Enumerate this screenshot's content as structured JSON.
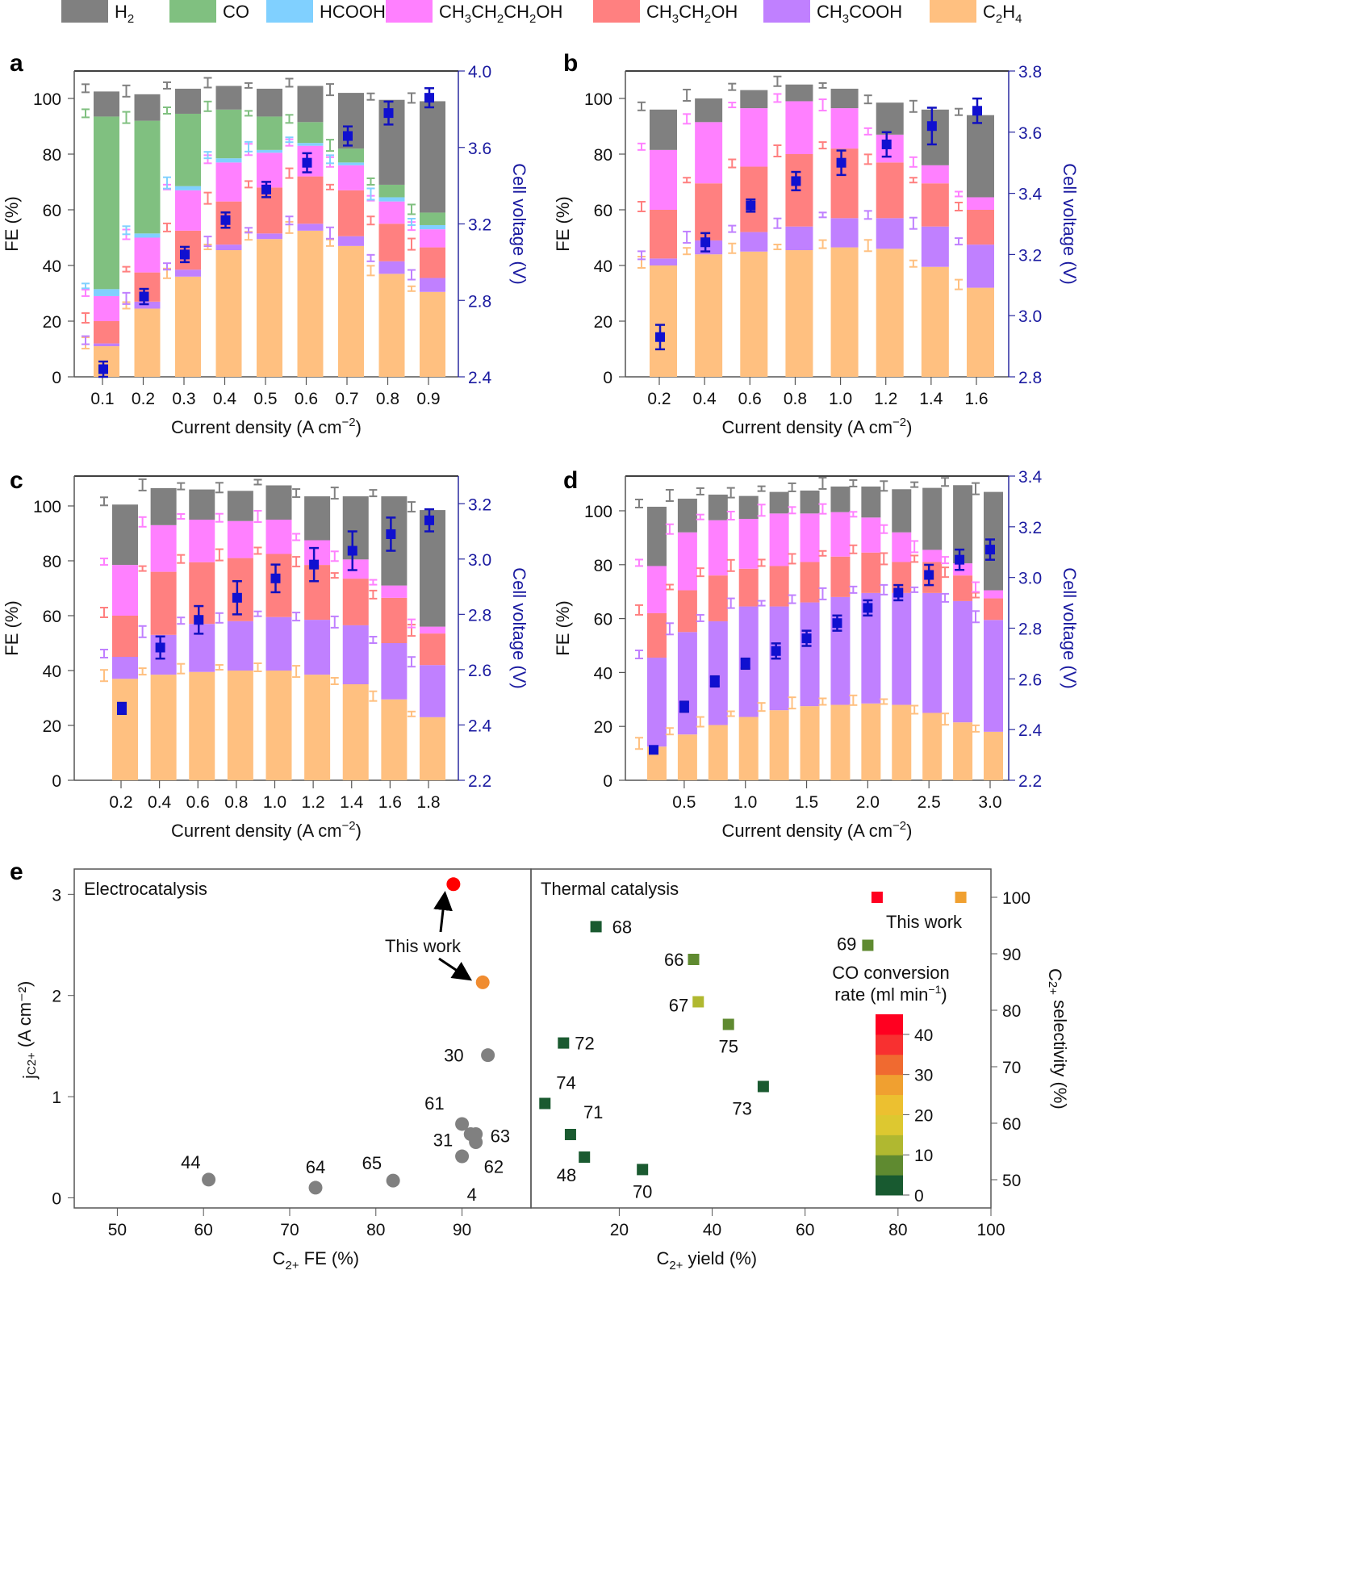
{
  "legend": [
    {
      "key": "H2",
      "label": "H",
      "sub": "2",
      "color": "#808080"
    },
    {
      "key": "CO",
      "label": "CO",
      "sub": "",
      "color": "#80c080"
    },
    {
      "key": "HCOOH",
      "label": "HCOOH",
      "sub": "",
      "color": "#80d0ff"
    },
    {
      "key": "PrOH",
      "label": "CH3CH2CH2OH",
      "sub": "",
      "color": "#ff80ff",
      "rich": [
        [
          "CH",
          "3"
        ],
        [
          "CH",
          "2"
        ],
        [
          "CH",
          "2"
        ],
        [
          "OH",
          ""
        ]
      ]
    },
    {
      "key": "EtOH",
      "label": "CH3CH2OH",
      "sub": "",
      "color": "#ff8080",
      "rich": [
        [
          "CH",
          "3"
        ],
        [
          "CH",
          "2"
        ],
        [
          "OH",
          ""
        ]
      ]
    },
    {
      "key": "AcOH",
      "label": "CH3COOH",
      "sub": "",
      "color": "#c080ff",
      "rich": [
        [
          "CH",
          "3"
        ],
        [
          "COOH",
          ""
        ]
      ]
    },
    {
      "key": "C2H4",
      "label": "C2H4",
      "sub": "",
      "color": "#ffc080",
      "rich": [
        [
          "C",
          "2"
        ],
        [
          "H",
          "4"
        ]
      ]
    }
  ],
  "chart_data": [
    {
      "panel": "a",
      "type": "bar",
      "stacked": true,
      "xlabel": "Current density (A cm⁻²)",
      "ylabel": "FE (%)",
      "y2label": "Cell voltage (V)",
      "categories": [
        "0.1",
        "0.2",
        "0.3",
        "0.4",
        "0.5",
        "0.6",
        "0.7",
        "0.8",
        "0.9"
      ],
      "ylim": [
        0,
        110
      ],
      "yticks": [
        0,
        20,
        40,
        60,
        80,
        100
      ],
      "y2lim": [
        2.4,
        4.0
      ],
      "y2ticks": [
        "2.4",
        "2.8",
        "3.2",
        "3.6",
        "4.0"
      ],
      "series": [
        {
          "name": "C2H4",
          "values": [
            11,
            24.5,
            36,
            45.5,
            49.5,
            52.5,
            47,
            37,
            30.5
          ]
        },
        {
          "name": "CH3COOH",
          "values": [
            1,
            2.5,
            2.5,
            2,
            2,
            2.5,
            3.5,
            4.5,
            5
          ]
        },
        {
          "name": "CH3CH2OH",
          "values": [
            8,
            10.5,
            14,
            15.5,
            16.5,
            17,
            16.5,
            13.5,
            11
          ]
        },
        {
          "name": "CH3CH2CH2OH",
          "values": [
            9,
            12.5,
            14.5,
            14,
            12.5,
            11,
            9,
            8,
            6.5
          ]
        },
        {
          "name": "HCOOH",
          "values": [
            2.5,
            1.5,
            1.5,
            1.5,
            1,
            1,
            1,
            1.5,
            1.5
          ]
        },
        {
          "name": "CO",
          "values": [
            62,
            40.5,
            26,
            17.5,
            12,
            7.5,
            5,
            4.5,
            4.5
          ]
        },
        {
          "name": "H2",
          "values": [
            9,
            9.5,
            9,
            8.5,
            10,
            13,
            20,
            30.5,
            40
          ]
        }
      ],
      "voltage": [
        2.44,
        2.82,
        3.04,
        3.22,
        3.38,
        3.52,
        3.66,
        3.78,
        3.86
      ],
      "voltage_err": [
        0.04,
        0.04,
        0.04,
        0.04,
        0.04,
        0.05,
        0.05,
        0.06,
        0.05
      ]
    },
    {
      "panel": "b",
      "type": "bar",
      "stacked": true,
      "xlabel": "Current density (A cm⁻²)",
      "ylabel": "FE (%)",
      "y2label": "Cell voltage (V)",
      "categories": [
        "0.2",
        "0.4",
        "0.6",
        "0.8",
        "1.0",
        "1.2",
        "1.4",
        "1.6"
      ],
      "ylim": [
        0,
        110
      ],
      "yticks": [
        0,
        20,
        40,
        60,
        80,
        100
      ],
      "y2lim": [
        2.8,
        3.8
      ],
      "y2ticks": [
        "2.8",
        "3.0",
        "3.2",
        "3.4",
        "3.6",
        "3.8"
      ],
      "series": [
        {
          "name": "C2H4",
          "values": [
            40,
            44,
            45,
            45.5,
            46.5,
            46,
            39.5,
            32
          ]
        },
        {
          "name": "CH3COOH",
          "values": [
            2.5,
            5,
            7,
            8.5,
            10.5,
            11,
            14.5,
            15.5
          ]
        },
        {
          "name": "CH3CH2OH",
          "values": [
            17.5,
            20.5,
            23.5,
            26,
            25,
            20,
            15.5,
            12.5
          ]
        },
        {
          "name": "CH3CH2CH2OH",
          "values": [
            21.5,
            22,
            21,
            19,
            14.5,
            10,
            6.5,
            4.5
          ]
        },
        {
          "name": "HCOOH",
          "values": [
            0,
            0,
            0,
            0,
            0,
            0,
            0,
            0
          ]
        },
        {
          "name": "CO",
          "values": [
            0,
            0,
            0,
            0,
            0,
            0,
            0,
            0
          ]
        },
        {
          "name": "H2",
          "values": [
            14.5,
            8.5,
            6.5,
            6,
            7,
            11.5,
            20,
            29.5
          ]
        }
      ],
      "voltage": [
        2.93,
        3.24,
        3.36,
        3.44,
        3.5,
        3.56,
        3.62,
        3.67
      ],
      "voltage_err": [
        0.04,
        0.03,
        0.02,
        0.03,
        0.04,
        0.04,
        0.06,
        0.04
      ]
    },
    {
      "panel": "c",
      "type": "bar",
      "stacked": true,
      "xlabel": "Current density (A cm⁻²)",
      "ylabel": "FE (%)",
      "y2label": "Cell voltage (V)",
      "categories": [
        "0.2",
        "0.4",
        "0.6",
        "0.8",
        "1.0",
        "1.2",
        "1.4",
        "1.6",
        "1.8"
      ],
      "ylim": [
        0,
        110
      ],
      "yticks": [
        0,
        20,
        40,
        60,
        80,
        100
      ],
      "y2lim": [
        2.2,
        3.3
      ],
      "y2ticks": [
        "2.2",
        "2.4",
        "2.6",
        "2.8",
        "3.0",
        "3.2"
      ],
      "series": [
        {
          "name": "C2H4",
          "values": [
            37,
            38.5,
            39.5,
            40,
            40,
            38.5,
            35,
            29.5,
            23
          ]
        },
        {
          "name": "CH3COOH",
          "values": [
            8,
            14.5,
            17.5,
            18,
            19.5,
            20,
            21.5,
            20.5,
            19
          ]
        },
        {
          "name": "CH3CH2OH",
          "values": [
            15,
            23,
            22.5,
            23,
            23,
            20,
            17,
            16.5,
            11.5
          ]
        },
        {
          "name": "CH3CH2CH2OH",
          "values": [
            18.5,
            17,
            15.5,
            13.5,
            12.5,
            9,
            7,
            4.5,
            2.5
          ]
        },
        {
          "name": "HCOOH",
          "values": [
            0,
            0,
            0,
            0,
            0,
            0,
            0,
            0,
            0
          ]
        },
        {
          "name": "CO",
          "values": [
            0,
            0,
            0,
            0,
            0,
            0,
            0,
            0,
            0
          ]
        },
        {
          "name": "H2",
          "values": [
            22,
            13.5,
            11,
            11,
            12.5,
            16,
            23,
            32.5,
            42.5
          ]
        }
      ],
      "voltage": [
        2.46,
        2.68,
        2.78,
        2.86,
        2.93,
        2.98,
        3.03,
        3.09,
        3.14
      ],
      "voltage_err": [
        0.02,
        0.04,
        0.05,
        0.06,
        0.05,
        0.06,
        0.07,
        0.06,
        0.04
      ]
    },
    {
      "panel": "d",
      "type": "bar",
      "stacked": true,
      "xlabel": "Current density (A cm⁻²)",
      "ylabel": "FE (%)",
      "y2label": "Cell voltage (V)",
      "categories": [
        "0.25",
        "0.5",
        "0.75",
        "1.0",
        "1.25",
        "1.5",
        "1.75",
        "2.0",
        "2.25",
        "2.5",
        "2.75",
        "3.0"
      ],
      "xticklabels": [
        "0.5",
        "1.0",
        "1.5",
        "2.0",
        "2.5",
        "3.0"
      ],
      "ylim": [
        0,
        113
      ],
      "yticks": [
        0,
        20,
        40,
        60,
        80,
        100
      ],
      "y2lim": [
        2.2,
        3.4
      ],
      "y2ticks": [
        "2.2",
        "2.4",
        "2.6",
        "2.8",
        "3.0",
        "3.2",
        "3.4"
      ],
      "series": [
        {
          "name": "C2H4",
          "values": [
            12.5,
            17,
            20.5,
            23.5,
            26,
            27.5,
            28,
            28.5,
            28,
            25,
            21.5,
            18
          ]
        },
        {
          "name": "CH3COOH",
          "values": [
            33,
            38,
            38.5,
            41,
            38.5,
            38.5,
            40,
            41,
            41.5,
            44.5,
            45,
            41.5
          ]
        },
        {
          "name": "CH3CH2OH",
          "values": [
            16.5,
            15.5,
            17,
            14,
            15,
            15,
            15,
            15,
            11.5,
            11.5,
            9.5,
            8
          ]
        },
        {
          "name": "CH3CH2CH2OH",
          "values": [
            17.5,
            21.5,
            20.5,
            18.5,
            19.5,
            18,
            16.5,
            13,
            11,
            4.5,
            4.5,
            3
          ]
        },
        {
          "name": "HCOOH",
          "values": [
            0,
            0,
            0,
            0,
            0,
            0,
            0,
            0,
            0,
            0,
            0,
            0
          ]
        },
        {
          "name": "CO",
          "values": [
            0,
            0,
            0,
            0,
            0,
            0,
            0,
            0,
            0,
            0,
            0,
            0
          ]
        },
        {
          "name": "H2",
          "values": [
            22,
            12.5,
            9.5,
            8.5,
            8,
            8.5,
            9.5,
            11.5,
            16,
            23,
            29,
            36.5
          ]
        }
      ],
      "voltage": [
        2.32,
        2.49,
        2.59,
        2.66,
        2.71,
        2.76,
        2.82,
        2.88,
        2.94,
        3.01,
        3.07,
        3.11
      ],
      "voltage_err": [
        0.01,
        0.02,
        0.02,
        0.02,
        0.03,
        0.03,
        0.03,
        0.03,
        0.03,
        0.04,
        0.04,
        0.04
      ]
    },
    {
      "panel": "e-left",
      "type": "scatter",
      "title": "Electrocatalysis",
      "xlabel": "C2+ FE (%)",
      "ylabel": "jC2+ (A cm⁻²)",
      "xlim": [
        45,
        98
      ],
      "ylim": [
        -0.1,
        3.25
      ],
      "xticks": [
        "50",
        "60",
        "70",
        "80",
        "90"
      ],
      "yticks": [
        "0",
        "1",
        "2",
        "3"
      ],
      "points": [
        {
          "label": "",
          "x": 89,
          "y": 3.1,
          "color": "#ff0000",
          "this_work": true
        },
        {
          "label": "",
          "x": 92.4,
          "y": 2.13,
          "color": "#f08c30",
          "this_work": true
        },
        {
          "label": "30",
          "x": 93,
          "y": 1.41,
          "color": "#808080"
        },
        {
          "label": "61",
          "x": 90,
          "y": 0.73,
          "color": "#808080"
        },
        {
          "label": "63",
          "x": 91.6,
          "y": 0.63,
          "color": "#808080"
        },
        {
          "label": "31",
          "x": 91,
          "y": 0.63,
          "color": "#808080"
        },
        {
          "label": "62",
          "x": 91.6,
          "y": 0.55,
          "color": "#808080"
        },
        {
          "label": "4",
          "x": 90,
          "y": 0.41,
          "color": "#808080"
        },
        {
          "label": "44",
          "x": 60.6,
          "y": 0.18,
          "color": "#808080"
        },
        {
          "label": "64",
          "x": 73,
          "y": 0.1,
          "color": "#808080"
        },
        {
          "label": "65",
          "x": 82,
          "y": 0.17,
          "color": "#808080"
        }
      ],
      "annotation": "This work"
    },
    {
      "panel": "e-right",
      "type": "scatter",
      "title": "Thermal catalysis",
      "xlabel": "C2+ yield (%)",
      "ylabel": "C2+ selectivity (%)",
      "xlim": [
        1,
        100
      ],
      "ylim": [
        45,
        105
      ],
      "xticks": [
        "20",
        "40",
        "60",
        "80",
        "100"
      ],
      "yticks": [
        "50",
        "60",
        "70",
        "80",
        "90",
        "100"
      ],
      "points": [
        {
          "label": "68",
          "x": 15,
          "y": 94.8,
          "color": "#1a5a30"
        },
        {
          "label": "66",
          "x": 36,
          "y": 89,
          "color": "#5f8a30"
        },
        {
          "label": "69",
          "x": 73.5,
          "y": 91.5,
          "color": "#5f8a30"
        },
        {
          "label": "67",
          "x": 37,
          "y": 81.5,
          "color": "#b0b830"
        },
        {
          "label": "75",
          "x": 43.5,
          "y": 77.5,
          "color": "#5f8a30"
        },
        {
          "label": "72",
          "x": 8,
          "y": 74.2,
          "color": "#1a5a30"
        },
        {
          "label": "73",
          "x": 51,
          "y": 66.5,
          "color": "#1a5a30"
        },
        {
          "label": "74",
          "x": 4,
          "y": 63.5,
          "color": "#1a5a30"
        },
        {
          "label": "71",
          "x": 9.5,
          "y": 58,
          "color": "#1a5a30"
        },
        {
          "label": "48",
          "x": 12.5,
          "y": 54,
          "color": "#1a5a30"
        },
        {
          "label": "70",
          "x": 25,
          "y": 51.8,
          "color": "#1a5a30"
        },
        {
          "label": "",
          "x": 75.5,
          "y": 100,
          "color": "#ff0020",
          "this_work": true
        },
        {
          "label": "",
          "x": 93.5,
          "y": 100,
          "color": "#f0a030",
          "this_work": true
        }
      ],
      "annotation": "This work",
      "colorbar": {
        "title1": "CO conversion",
        "title2": "rate (ml min⁻¹)",
        "range": [
          0,
          45
        ],
        "ticks": [
          "0",
          "10",
          "20",
          "30",
          "40"
        ],
        "colors": [
          "#185a30",
          "#5f8a30",
          "#b0b830",
          "#ddc830",
          "#ecc030",
          "#f0a030",
          "#f06a30",
          "#f83030",
          "#ff0020"
        ]
      }
    }
  ],
  "panel_labels": [
    "a",
    "b",
    "c",
    "d",
    "e"
  ]
}
